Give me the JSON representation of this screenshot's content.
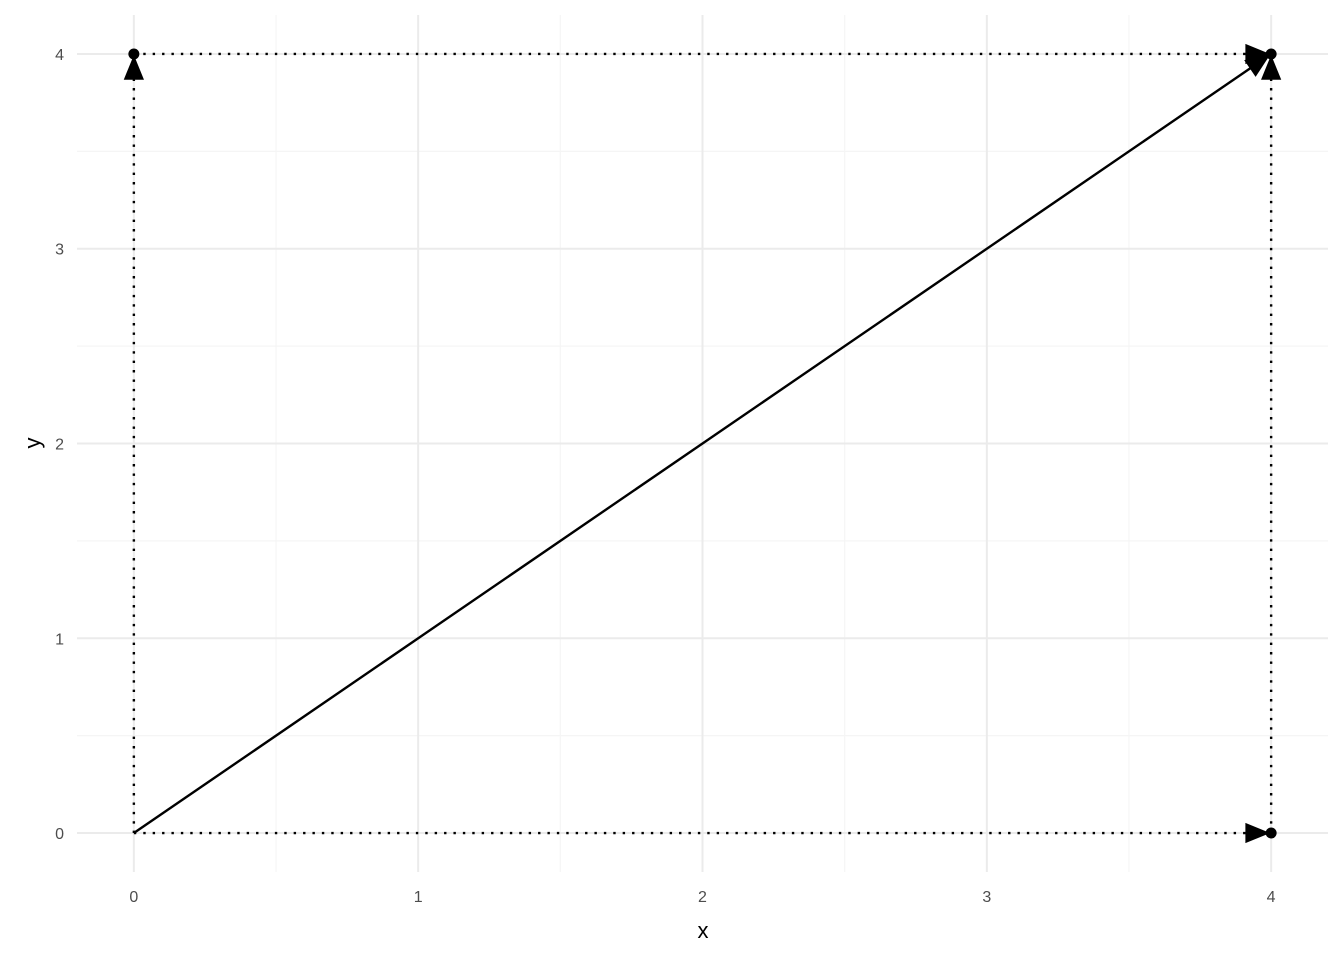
{
  "chart_data": {
    "type": "line",
    "title": "",
    "xlabel": "x",
    "ylabel": "y",
    "xlim": [
      -0.2,
      4.2
    ],
    "ylim": [
      -0.2,
      4.2
    ],
    "x_ticks": [
      "0",
      "1",
      "2",
      "3",
      "4"
    ],
    "y_ticks": [
      "0",
      "1",
      "2",
      "3",
      "4"
    ],
    "grid": true,
    "segments": [
      {
        "from": [
          0,
          0
        ],
        "to": [
          4,
          4
        ],
        "linetype": "solid",
        "arrow": true
      },
      {
        "from": [
          0,
          0
        ],
        "to": [
          0,
          4
        ],
        "linetype": "dotted",
        "arrow": true
      },
      {
        "from": [
          0,
          0
        ],
        "to": [
          4,
          0
        ],
        "linetype": "dotted",
        "arrow": true
      },
      {
        "from": [
          0,
          4
        ],
        "to": [
          4,
          4
        ],
        "linetype": "dotted",
        "arrow": true
      },
      {
        "from": [
          4,
          0
        ],
        "to": [
          4,
          4
        ],
        "linetype": "dotted",
        "arrow": true
      }
    ],
    "points": [
      [
        0,
        4
      ],
      [
        4,
        4
      ],
      [
        4,
        0
      ]
    ],
    "colors": {
      "ink": "#000000",
      "grid_major": "#ebebeb",
      "grid_minor": "#f5f5f5",
      "tick_text": "#4d4d4d"
    }
  }
}
